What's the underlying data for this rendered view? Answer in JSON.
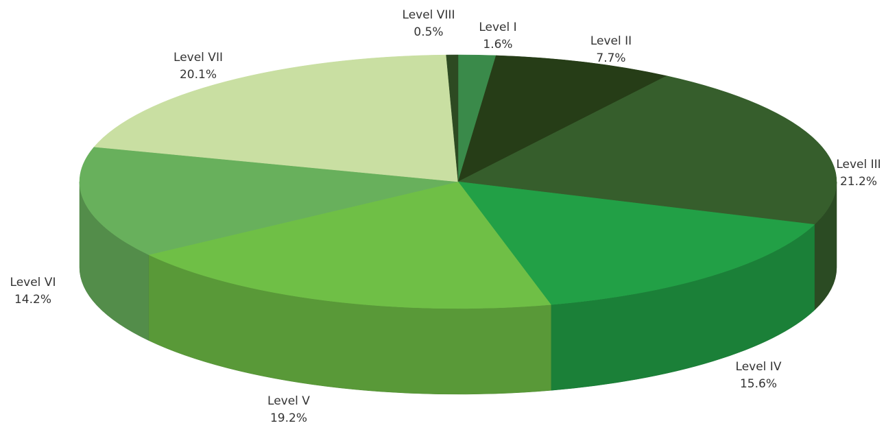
{
  "chart_data": {
    "type": "pie",
    "categories": [
      "Level I",
      "Level II",
      "Level III",
      "Level IV",
      "Level V",
      "Level VI",
      "Level VII",
      "Level VIII"
    ],
    "values": [
      1.6,
      7.7,
      21.2,
      15.6,
      19.2,
      14.2,
      20.1,
      0.5
    ],
    "value_labels": [
      "1.6%",
      "7.7%",
      "21.2%",
      "15.6%",
      "19.2%",
      "14.2%",
      "20.1%",
      "0.5%"
    ],
    "colors": [
      "#3a8a4a",
      "#263d17",
      "#365e2c",
      "#22a046",
      "#6fbf46",
      "#68b05c",
      "#c9dfa2",
      "#2d4a22"
    ]
  }
}
